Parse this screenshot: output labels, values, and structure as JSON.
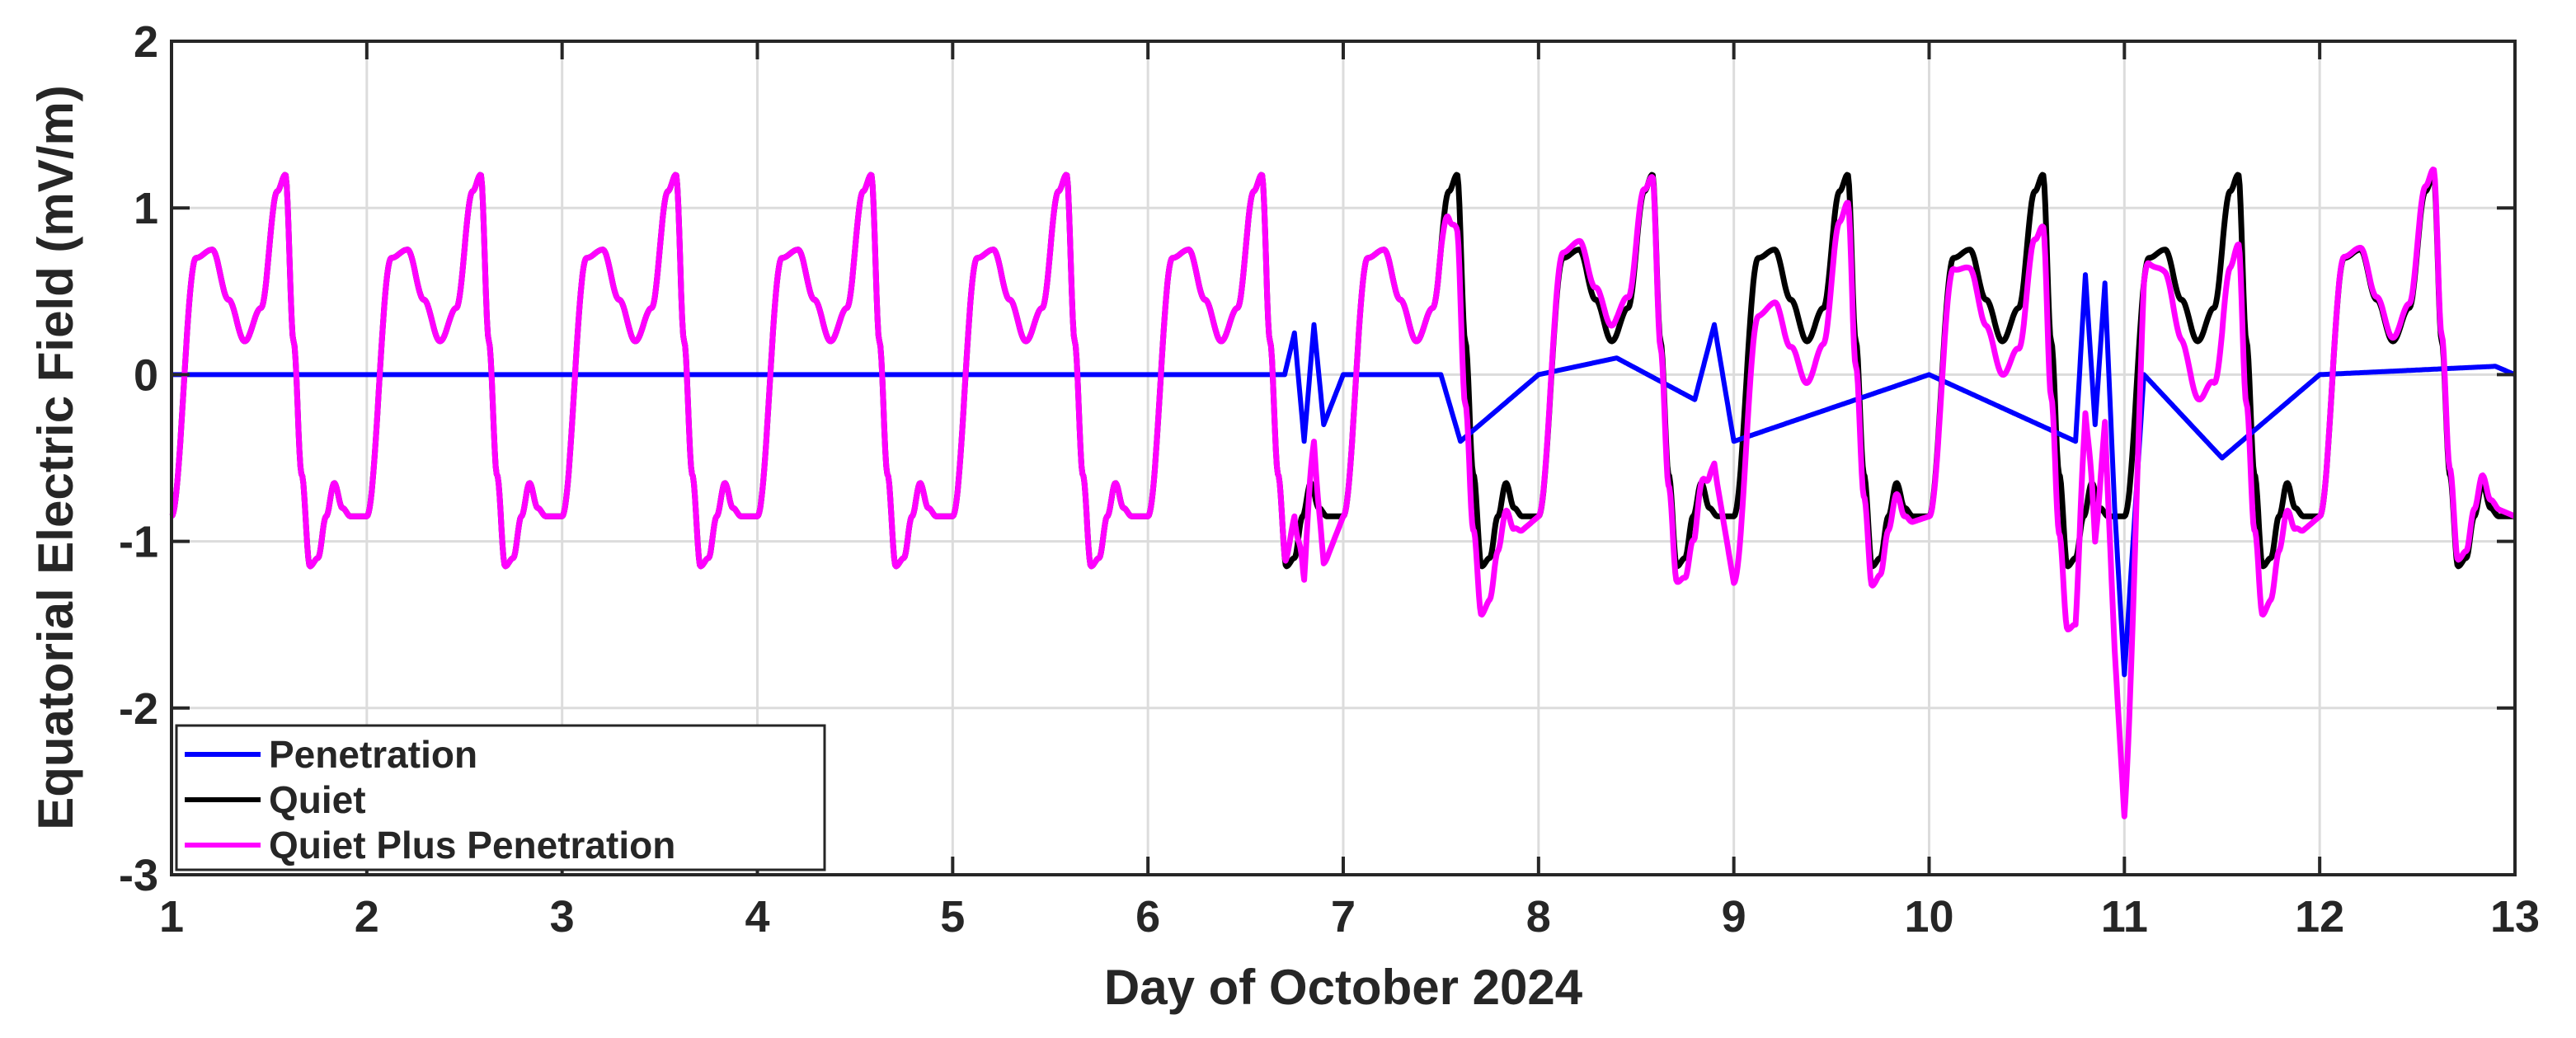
{
  "chart_data": {
    "type": "line",
    "title": "",
    "xlabel": "Day of October 2024",
    "ylabel": "Equatorial Electric Field (mV/m)",
    "xlim": [
      1,
      13
    ],
    "ylim": [
      -3,
      2
    ],
    "xticks": [
      1,
      2,
      3,
      4,
      5,
      6,
      7,
      8,
      9,
      10,
      11,
      12,
      13
    ],
    "yticks": [
      -3,
      -2,
      -1,
      0,
      1,
      2
    ],
    "grid": true,
    "legend": {
      "placement": "bottom-left"
    },
    "daily_pattern": {
      "description_hours": [
        0,
        3,
        5,
        7,
        9,
        11,
        13,
        14,
        15,
        16,
        17,
        18,
        19,
        20,
        21,
        22,
        24
      ],
      "quiet_values": [
        -0.85,
        0.7,
        0.75,
        0.45,
        0.2,
        0.4,
        1.1,
        1.2,
        0.2,
        -0.6,
        -1.15,
        -1.1,
        -0.85,
        -0.65,
        -0.8,
        -0.85,
        -0.85
      ]
    },
    "series": [
      {
        "name": "Penetration",
        "color": "#0000ff",
        "x": [
          1.0,
          2.0,
          3.0,
          4.0,
          5.0,
          6.0,
          6.7,
          6.75,
          6.8,
          6.85,
          6.9,
          7.0,
          7.5,
          7.6,
          8.0,
          8.4,
          8.8,
          8.9,
          9.0,
          10.0,
          10.75,
          10.8,
          10.85,
          10.9,
          10.95,
          11.0,
          11.1,
          11.5,
          12.0,
          12.9,
          13.0
        ],
        "y": [
          0.0,
          0.0,
          0.0,
          0.0,
          0.0,
          0.0,
          0.0,
          0.25,
          -0.4,
          0.3,
          -0.3,
          0.0,
          0.0,
          -0.4,
          0.0,
          0.1,
          -0.15,
          0.3,
          -0.4,
          0.0,
          -0.4,
          0.6,
          -0.3,
          0.55,
          -0.8,
          -1.8,
          0.0,
          -0.5,
          0.0,
          0.05,
          0.0
        ]
      },
      {
        "name": "Quiet",
        "color": "#000000"
      },
      {
        "name": "Quiet Plus Penetration",
        "color": "#ff00ff"
      }
    ]
  }
}
